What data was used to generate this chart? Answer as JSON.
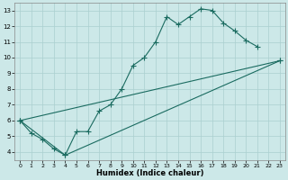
{
  "xlabel": "Humidex (Indice chaleur)",
  "xlim": [
    -0.5,
    23.5
  ],
  "ylim": [
    3.5,
    13.5
  ],
  "xticks": [
    0,
    1,
    2,
    3,
    4,
    5,
    6,
    7,
    8,
    9,
    10,
    11,
    12,
    13,
    14,
    15,
    16,
    17,
    18,
    19,
    20,
    21,
    22,
    23
  ],
  "yticks": [
    4,
    5,
    6,
    7,
    8,
    9,
    10,
    11,
    12,
    13
  ],
  "bg_color": "#cce8e8",
  "line_color": "#1a6b60",
  "grid_color": "#aacfcf",
  "line1_x": [
    0,
    1,
    2,
    3,
    4,
    5,
    6,
    7,
    8,
    9,
    10,
    11,
    12,
    13,
    14,
    15,
    16,
    17,
    18,
    19,
    20,
    21
  ],
  "line1_y": [
    6.0,
    5.2,
    4.8,
    4.2,
    3.8,
    5.3,
    5.3,
    6.6,
    7.0,
    8.0,
    9.5,
    10.0,
    11.0,
    12.6,
    12.1,
    12.6,
    13.1,
    13.0,
    12.2,
    11.7,
    11.1,
    10.7
  ],
  "line2_x": [
    0,
    23
  ],
  "line2_y": [
    6.0,
    9.8
  ],
  "line3_x": [
    0,
    4,
    23
  ],
  "line3_y": [
    6.0,
    3.8,
    9.8
  ],
  "marker_size": 2.5,
  "linewidth": 0.8
}
